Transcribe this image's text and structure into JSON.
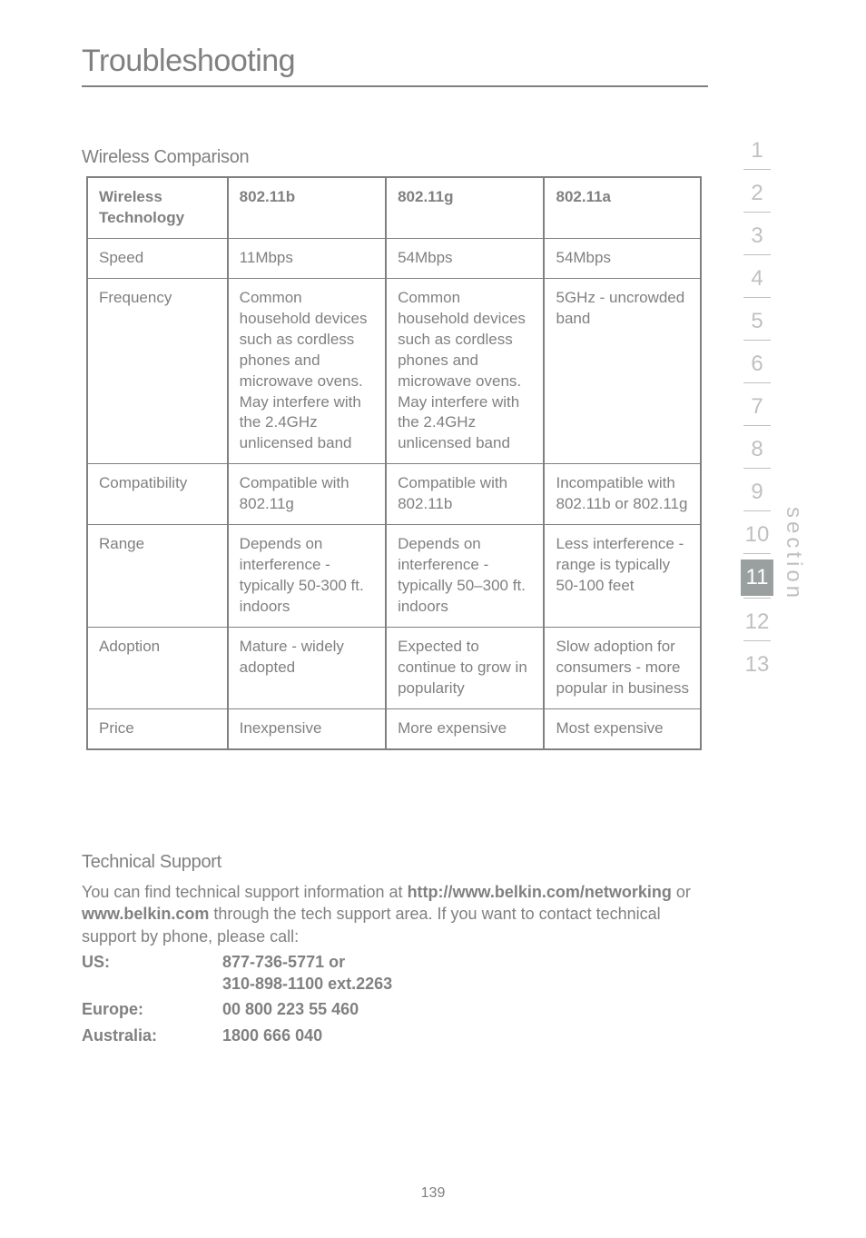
{
  "page": {
    "title": "Troubleshooting",
    "number": "139"
  },
  "headings": {
    "wireless_comparison": "Wireless Comparison",
    "technical_support": "Technical Support"
  },
  "table": {
    "columns": [
      "Wireless Technology",
      "802.11b",
      "802.11g",
      "802.11a"
    ],
    "rows": [
      {
        "label": "Speed",
        "c1": "11Mbps",
        "c2": "54Mbps",
        "c3": "54Mbps"
      },
      {
        "label": "Frequency",
        "c1": "Common household devices such as cordless phones and microwave ovens. May interfere with the 2.4GHz unlicensed band",
        "c2": "Common household devices such as cordless phones and microwave ovens. May interfere with the 2.4GHz unlicensed band",
        "c3": "5GHz - uncrowded band"
      },
      {
        "label": "Compatibility",
        "c1": "Compatible with 802.11g",
        "c2": "Compatible with 802.11b",
        "c3": "Incompatible with 802.11b or 802.11g"
      },
      {
        "label": "Range",
        "c1": "Depends on interference - typically 50-300 ft. indoors",
        "c2": "Depends on interference - typically 50–300 ft. indoors",
        "c3": "Less interference - range is typically 50-100 feet"
      },
      {
        "label": "Adoption",
        "c1": "Mature - widely adopted",
        "c2": "Expected to continue to grow in popularity",
        "c3": "Slow adoption for consumers - more popular in business"
      },
      {
        "label": "Price",
        "c1": "Inexpensive",
        "c2": "More expensive",
        "c3": "Most expensive"
      }
    ]
  },
  "support": {
    "intro_1": "You can find technical support information at ",
    "link1": "http://www.belkin.com/networking",
    "intro_2": " or ",
    "link2": "www.belkin.com",
    "intro_3": " through the tech support area. If you want to contact technical support by phone, please call:",
    "contacts": [
      {
        "label": "US:",
        "value": "877-736-5771 or\n310-898-1100 ext.2263"
      },
      {
        "label": "Europe:",
        "value": "00 800 223 55 460"
      },
      {
        "label": "Australia:",
        "value": "1800 666 040"
      }
    ]
  },
  "sidebar": {
    "label": "section",
    "items": [
      "1",
      "2",
      "3",
      "4",
      "5",
      "6",
      "7",
      "8",
      "9",
      "10",
      "11",
      "12",
      "13"
    ],
    "active_index": 10
  },
  "colors": {
    "text_gray": "#808080",
    "light_gray": "#c0c0c0",
    "active_bg": "#9aa0a0",
    "white": "#ffffff"
  }
}
